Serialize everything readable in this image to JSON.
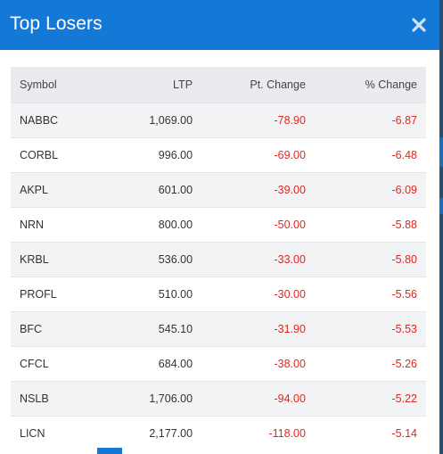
{
  "modal": {
    "title": "Top Losers",
    "close_label": "×",
    "accent_color": "#1479d6"
  },
  "table": {
    "columns": [
      "Symbol",
      "LTP",
      "Pt. Change",
      "% Change"
    ],
    "negative_color": "#e0271f",
    "rows": [
      {
        "symbol": "NABBC",
        "ltp": "1,069.00",
        "pt_change": "-78.90",
        "pct_change": "-6.87"
      },
      {
        "symbol": "CORBL",
        "ltp": "996.00",
        "pt_change": "-69.00",
        "pct_change": "-6.48"
      },
      {
        "symbol": "AKPL",
        "ltp": "601.00",
        "pt_change": "-39.00",
        "pct_change": "-6.09"
      },
      {
        "symbol": "NRN",
        "ltp": "800.00",
        "pt_change": "-50.00",
        "pct_change": "-5.88"
      },
      {
        "symbol": "KRBL",
        "ltp": "536.00",
        "pt_change": "-33.00",
        "pct_change": "-5.80"
      },
      {
        "symbol": "PROFL",
        "ltp": "510.00",
        "pt_change": "-30.00",
        "pct_change": "-5.56"
      },
      {
        "symbol": "BFC",
        "ltp": "545.10",
        "pt_change": "-31.90",
        "pct_change": "-5.53"
      },
      {
        "symbol": "CFCL",
        "ltp": "684.00",
        "pt_change": "-38.00",
        "pct_change": "-5.26"
      },
      {
        "symbol": "NSLB",
        "ltp": "1,706.00",
        "pt_change": "-94.00",
        "pct_change": "-5.22"
      },
      {
        "symbol": "LICN",
        "ltp": "2,177.00",
        "pt_change": "-118.00",
        "pct_change": "-5.14"
      }
    ]
  }
}
